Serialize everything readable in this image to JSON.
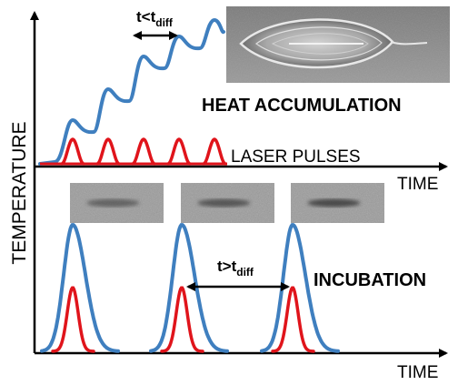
{
  "y_axis_label": "TEMPERATURE",
  "top_panel": {
    "interval_label": {
      "main": "t<t",
      "subscript": "diff"
    },
    "regime_label": "HEAT ACCUMULATION",
    "pulse_label": "LASER PULSES",
    "x_axis_label": "TIME",
    "pulse_count": 5,
    "temperature_step_count": 5
  },
  "bottom_panel": {
    "interval_label": {
      "main": "t>t",
      "subscript": "diff"
    },
    "regime_label": "INCUBATION",
    "x_axis_label": "TIME",
    "pulse_count": 3,
    "micrograph_count": 3
  },
  "colors": {
    "temperature_curve": "#3f7fbf",
    "laser_pulse": "#e0141b",
    "axis": "#000000",
    "text": "#000000"
  }
}
